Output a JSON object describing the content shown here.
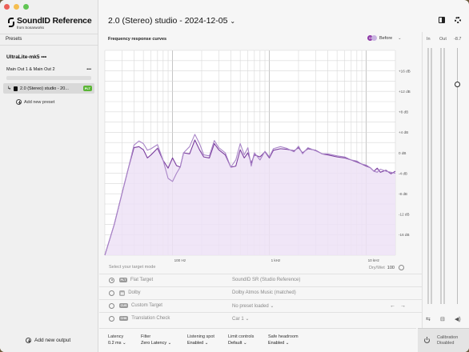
{
  "sidebar": {
    "logo_text": "SoundID Reference",
    "logo_sub": "from Sonarworks",
    "presets_label": "Presets",
    "device_name": "UltraLite-mk5",
    "output_name": "Main Out 1 & Main Out 2",
    "preset_name": "2.0 (Stereo) studio - 20...",
    "preset_badge": "PLT",
    "add_preset": "Add new preset",
    "add_output": "Add new output"
  },
  "header": {
    "title": "2.0 (Stereo) studio - 2024-12-05"
  },
  "graph": {
    "label": "Frequency response curves",
    "before_label": "Before",
    "before_icon": "B"
  },
  "chart_data": {
    "type": "line",
    "xscale": "log",
    "xlim": [
      20,
      20000
    ],
    "ylim": [
      -20,
      20
    ],
    "x_ticks": [
      "100 Hz",
      "1 kHz",
      "10 kHz"
    ],
    "y_ticks": [
      "+16 dB",
      "+12 dB",
      "+8 dB",
      "+4 dB",
      "0 dB",
      "-4 dB",
      "-8 dB",
      "-12 dB",
      "-16 dB"
    ],
    "series": [
      {
        "color": "#7a3d9e",
        "points": [
          [
            20,
            -20
          ],
          [
            25,
            -14
          ],
          [
            30,
            -8
          ],
          [
            35,
            -3
          ],
          [
            40,
            1
          ],
          [
            45,
            1.2
          ],
          [
            50,
            0.6
          ],
          [
            55,
            -1
          ],
          [
            60,
            -0.4
          ],
          [
            70,
            0.9
          ],
          [
            80,
            -1.5
          ],
          [
            90,
            -3
          ],
          [
            100,
            -1
          ],
          [
            110,
            -2.5
          ],
          [
            120,
            -2.8
          ],
          [
            130,
            0
          ],
          [
            150,
            -0.2
          ],
          [
            170,
            2.5
          ],
          [
            190,
            0.6
          ],
          [
            210,
            -0.8
          ],
          [
            240,
            -1
          ],
          [
            270,
            1.8
          ],
          [
            300,
            0.6
          ],
          [
            350,
            -0.4
          ],
          [
            400,
            -2.8
          ],
          [
            450,
            -2.6
          ],
          [
            500,
            0.6
          ],
          [
            550,
            -1
          ],
          [
            600,
            0
          ],
          [
            650,
            -2
          ],
          [
            700,
            -0.4
          ],
          [
            800,
            -0.8
          ],
          [
            900,
            0.2
          ],
          [
            1000,
            -1
          ],
          [
            1100,
            0.5
          ],
          [
            1300,
            0.8
          ],
          [
            1500,
            0.7
          ],
          [
            1800,
            0.4
          ],
          [
            2000,
            1
          ],
          [
            2200,
            0
          ],
          [
            2500,
            0.8
          ],
          [
            3000,
            0.5
          ],
          [
            3500,
            -0.2
          ],
          [
            4000,
            -0.4
          ],
          [
            5000,
            -0.8
          ],
          [
            6000,
            -1
          ],
          [
            7000,
            -1.4
          ],
          [
            8000,
            -1.8
          ],
          [
            9000,
            -2.2
          ],
          [
            10000,
            -2.6
          ],
          [
            11000,
            -2.9
          ],
          [
            12000,
            -3.6
          ],
          [
            13000,
            -3
          ],
          [
            14000,
            -3.8
          ],
          [
            16000,
            -3.4
          ],
          [
            18000,
            -4.1
          ],
          [
            20000,
            -3.6
          ]
        ]
      },
      {
        "color": "#a985c8",
        "points": [
          [
            20,
            -20
          ],
          [
            25,
            -14
          ],
          [
            30,
            -8
          ],
          [
            35,
            -3
          ],
          [
            40,
            1.5
          ],
          [
            45,
            2.3
          ],
          [
            50,
            1.8
          ],
          [
            55,
            0.5
          ],
          [
            60,
            0.8
          ],
          [
            70,
            1.6
          ],
          [
            80,
            -1.5
          ],
          [
            90,
            -5
          ],
          [
            100,
            -5.6
          ],
          [
            110,
            -4
          ],
          [
            120,
            -2.8
          ],
          [
            130,
            0
          ],
          [
            150,
            1.2
          ],
          [
            170,
            3.6
          ],
          [
            190,
            1.8
          ],
          [
            210,
            -0.4
          ],
          [
            240,
            -0.6
          ],
          [
            270,
            2.4
          ],
          [
            300,
            1
          ],
          [
            350,
            0
          ],
          [
            400,
            -2.8
          ],
          [
            450,
            -1.4
          ],
          [
            500,
            1.8
          ],
          [
            550,
            -0.4
          ],
          [
            600,
            1
          ],
          [
            650,
            -2.6
          ],
          [
            700,
            0
          ],
          [
            800,
            -1.4
          ],
          [
            900,
            0.3
          ],
          [
            1000,
            -0.8
          ],
          [
            1100,
            0.8
          ],
          [
            1300,
            1.2
          ],
          [
            1500,
            0.9
          ],
          [
            1800,
            0.2
          ],
          [
            2000,
            1.3
          ],
          [
            2200,
            -0.2
          ],
          [
            2500,
            1
          ],
          [
            3000,
            0.4
          ],
          [
            3500,
            -0.2
          ],
          [
            4000,
            -0.2
          ],
          [
            5000,
            -0.6
          ],
          [
            6000,
            -0.8
          ],
          [
            7000,
            -1.4
          ],
          [
            8000,
            -1.6
          ],
          [
            9000,
            -2.2
          ],
          [
            10000,
            -2.4
          ],
          [
            11000,
            -2.9
          ],
          [
            12000,
            -3.6
          ],
          [
            13000,
            -3.8
          ],
          [
            14000,
            -3.2
          ],
          [
            16000,
            -3.6
          ],
          [
            18000,
            -3.8
          ],
          [
            20000,
            -4
          ]
        ]
      }
    ]
  },
  "target_mode": {
    "label": "Select your target mode",
    "drywet_label": "Dry/Wet",
    "drywet_value": "100",
    "rows": [
      {
        "badge": "PLT",
        "name": "Flat Target",
        "value": "SoundID SR (Studio Reference)"
      },
      {
        "badge": "",
        "name": "Dolby",
        "value": "Dolby Atmos Music (matched)"
      },
      {
        "badge": "CUS",
        "name": "Custom Target",
        "value": "No preset loaded"
      },
      {
        "badge": "CHK",
        "name": "Translation Check",
        "value": "Car 1"
      }
    ]
  },
  "bottom_bar": {
    "latency": {
      "label": "Latency",
      "value": "0.2 ms"
    },
    "filter": {
      "label": "Filter",
      "value": "Zero Latency"
    },
    "listening_spot": {
      "label": "Listening spot",
      "value": "Enabled"
    },
    "limit_controls": {
      "label": "Limit controls",
      "value": "Default"
    },
    "safe_headroom": {
      "label": "Safe headroom",
      "value": "Enabled"
    },
    "calibration": {
      "label": "Calibration",
      "value": "Disabled"
    }
  },
  "meters": {
    "in_label": "In",
    "out_label": "Out",
    "volume_value": "-8.7",
    "volume_level": 0.86
  }
}
